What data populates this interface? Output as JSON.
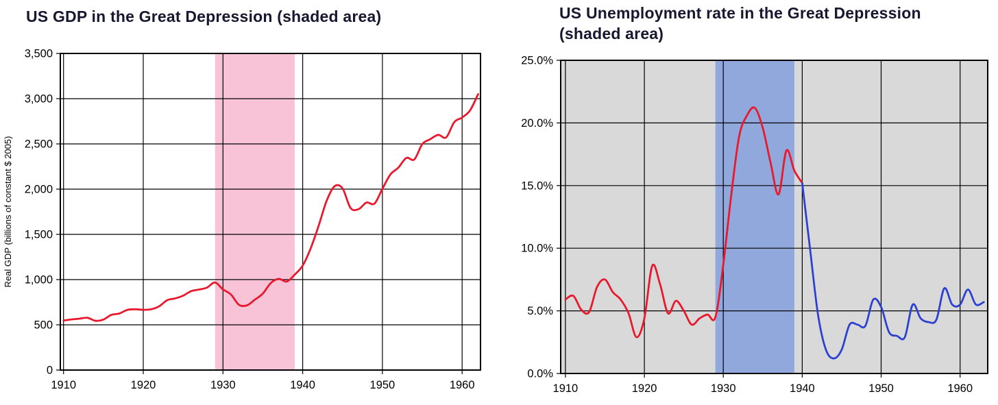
{
  "chart_data": [
    {
      "type": "line",
      "title": "US GDP in the Great Depression (shaded area)",
      "xlabel": "",
      "ylabel": "Real GDP (billions of  constant $ 2005)",
      "plot_bg": "#ffffff",
      "grid_color": "#000000",
      "grid": true,
      "legend": "none",
      "xlim": [
        1909.6,
        1962.3
      ],
      "ylim": [
        0,
        3500
      ],
      "shaded_region": {
        "from": 1929,
        "to": 1939,
        "color": "#f8c3d6",
        "label": "Great Depression"
      },
      "x_ticks": [
        {
          "value": 1910,
          "label": "1910"
        },
        {
          "value": 1920,
          "label": "1920"
        },
        {
          "value": 1930,
          "label": "1930"
        },
        {
          "value": 1940,
          "label": "1940"
        },
        {
          "value": 1950,
          "label": "1950"
        },
        {
          "value": 1960,
          "label": "1960"
        }
      ],
      "y_ticks": [
        {
          "value": 0,
          "label": "0"
        },
        {
          "value": 500,
          "label": "500"
        },
        {
          "value": 1000,
          "label": "1,000"
        },
        {
          "value": 1500,
          "label": "1,500"
        },
        {
          "value": 2000,
          "label": "2,000"
        },
        {
          "value": 2500,
          "label": "2,500"
        },
        {
          "value": 3000,
          "label": "3,000"
        },
        {
          "value": 3500,
          "label": "3,500"
        }
      ],
      "series": [
        {
          "name": "Real GDP",
          "color": "#e8192d",
          "x": [
            1910,
            1911,
            1912,
            1913,
            1914,
            1915,
            1916,
            1917,
            1918,
            1919,
            1920,
            1921,
            1922,
            1923,
            1924,
            1925,
            1926,
            1927,
            1928,
            1929,
            1930,
            1931,
            1932,
            1933,
            1934,
            1935,
            1936,
            1937,
            1938,
            1939,
            1940,
            1941,
            1942,
            1943,
            1944,
            1945,
            1946,
            1947,
            1948,
            1949,
            1950,
            1951,
            1952,
            1953,
            1954,
            1955,
            1956,
            1957,
            1958,
            1959,
            1960,
            1961,
            1962
          ],
          "y": [
            548,
            560,
            568,
            578,
            545,
            558,
            610,
            625,
            665,
            672,
            666,
            672,
            705,
            772,
            792,
            822,
            872,
            890,
            912,
            968,
            892,
            835,
            722,
            715,
            778,
            845,
            962,
            1008,
            978,
            1055,
            1155,
            1345,
            1595,
            1870,
            2032,
            2008,
            1792,
            1778,
            1852,
            1840,
            2004,
            2162,
            2238,
            2345,
            2328,
            2498,
            2552,
            2600,
            2572,
            2740,
            2792,
            2872,
            3050
          ]
        }
      ]
    },
    {
      "type": "line",
      "title": "US Unemployment rate in the Great Depression (shaded area)",
      "xlabel": "",
      "ylabel": "",
      "plot_bg": "#d9d9d9",
      "grid_color": "#000000",
      "grid": true,
      "legend": "none",
      "xlim": [
        1909.4,
        1963.5
      ],
      "ylim": [
        0,
        25
      ],
      "shaded_region": {
        "from": 1929,
        "to": 1939,
        "color": "#91a8dd",
        "label": "Great Depression"
      },
      "x_ticks": [
        {
          "value": 1910,
          "label": "1910"
        },
        {
          "value": 1920,
          "label": "1920"
        },
        {
          "value": 1930,
          "label": "1930"
        },
        {
          "value": 1940,
          "label": "1940"
        },
        {
          "value": 1950,
          "label": "1950"
        },
        {
          "value": 1960,
          "label": "1960"
        }
      ],
      "y_ticks": [
        {
          "value": 0,
          "label": "0.0%"
        },
        {
          "value": 5,
          "label": "5.0%"
        },
        {
          "value": 10,
          "label": "10.0%"
        },
        {
          "value": 15,
          "label": "15.0%"
        },
        {
          "value": 20,
          "label": "20.0%"
        },
        {
          "value": 25,
          "label": "25.0%"
        }
      ],
      "series": [
        {
          "name": "Unemployment rate 1910-1940",
          "color": "#e8192d",
          "x": [
            1910,
            1911,
            1912,
            1913,
            1914,
            1915,
            1916,
            1917,
            1918,
            1919,
            1920,
            1921,
            1922,
            1923,
            1924,
            1925,
            1926,
            1927,
            1928,
            1929,
            1930,
            1931,
            1932,
            1933,
            1934,
            1935,
            1936,
            1937,
            1938,
            1939,
            1940
          ],
          "y": [
            5.9,
            6.2,
            5.1,
            4.9,
            6.9,
            7.5,
            6.5,
            5.9,
            4.8,
            2.9,
            4.4,
            8.6,
            7.1,
            4.8,
            5.8,
            5.0,
            3.9,
            4.4,
            4.7,
            4.5,
            8.7,
            14.2,
            18.9,
            20.6,
            21.2,
            19.6,
            16.8,
            14.3,
            17.8,
            16.2,
            15.2
          ]
        },
        {
          "name": "Unemployment rate 1940-1963",
          "color": "#2d41d0",
          "x": [
            1940,
            1941,
            1942,
            1943,
            1944,
            1945,
            1946,
            1947,
            1948,
            1949,
            1950,
            1951,
            1952,
            1953,
            1954,
            1955,
            1956,
            1957,
            1958,
            1959,
            1960,
            1961,
            1962,
            1963
          ],
          "y": [
            15.2,
            9.9,
            4.7,
            1.9,
            1.2,
            1.9,
            3.9,
            3.9,
            3.8,
            5.9,
            5.3,
            3.3,
            3.0,
            2.9,
            5.5,
            4.4,
            4.1,
            4.3,
            6.8,
            5.5,
            5.5,
            6.7,
            5.5,
            5.7
          ]
        }
      ]
    }
  ]
}
